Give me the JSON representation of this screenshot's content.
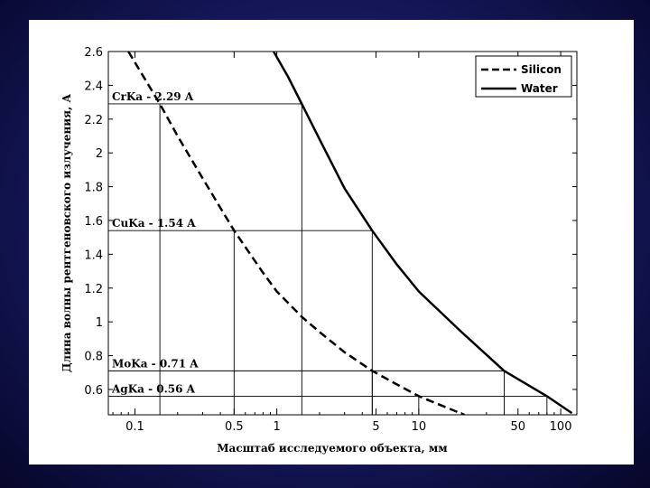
{
  "chart_data": {
    "type": "line",
    "xscale": "log",
    "xlabel": "Масштаб исследуемого объекта, мм",
    "ylabel": "Длина волны рентгеновского излучения, А",
    "xlim": [
      0.065,
      130
    ],
    "ylim": [
      0.45,
      2.6
    ],
    "x_ticks": [
      {
        "value": 0.1,
        "label": "0.1"
      },
      {
        "value": 0.5,
        "label": "0.5"
      },
      {
        "value": 1,
        "label": "1"
      },
      {
        "value": 5,
        "label": "5"
      },
      {
        "value": 10,
        "label": "10"
      },
      {
        "value": 50,
        "label": "50"
      },
      {
        "value": 100,
        "label": "100"
      }
    ],
    "y_ticks": [
      {
        "value": 0.6,
        "label": "0.6"
      },
      {
        "value": 0.8,
        "label": "0.8"
      },
      {
        "value": 1,
        "label": "1"
      },
      {
        "value": 1.2,
        "label": "1.2"
      },
      {
        "value": 1.4,
        "label": "1.4"
      },
      {
        "value": 1.6,
        "label": "1.6"
      },
      {
        "value": 1.8,
        "label": "1.8"
      },
      {
        "value": 2,
        "label": "2"
      },
      {
        "value": 2.2,
        "label": "2.2"
      },
      {
        "value": 2.4,
        "label": "2.4"
      },
      {
        "value": 2.6,
        "label": "2.6"
      }
    ],
    "series": [
      {
        "name": "Silicon",
        "style": "dashed",
        "color": "#000000",
        "x": [
          0.09,
          0.15,
          0.2,
          0.3,
          0.5,
          0.8,
          1.0,
          1.5,
          2.0,
          3.0,
          4.7,
          7.0,
          10.0,
          15.0,
          21.0
        ],
        "y": [
          2.6,
          2.29,
          2.1,
          1.85,
          1.54,
          1.29,
          1.18,
          1.03,
          0.94,
          0.82,
          0.71,
          0.63,
          0.56,
          0.5,
          0.45
        ]
      },
      {
        "name": "Water",
        "style": "solid",
        "color": "#000000",
        "x": [
          0.95,
          1.2,
          1.5,
          2.0,
          3.0,
          4.7,
          7.0,
          10.0,
          20.0,
          40.0,
          80.0,
          120.0
        ],
        "y": [
          2.6,
          2.45,
          2.29,
          2.08,
          1.79,
          1.54,
          1.34,
          1.18,
          0.94,
          0.71,
          0.56,
          0.46
        ]
      }
    ],
    "reference_lines": [
      {
        "label": "CrKa - 2.29 A",
        "y": 2.29,
        "x": [
          0.15,
          1.5
        ]
      },
      {
        "label": "CuKa - 1.54 A",
        "y": 1.54,
        "x": [
          0.5,
          4.7
        ]
      },
      {
        "label": "MoKa - 0.71 A",
        "y": 0.71,
        "x": [
          4.7,
          40
        ]
      },
      {
        "label": "AgKa - 0.56 A",
        "y": 0.56,
        "x": [
          10,
          80
        ]
      }
    ],
    "legend": {
      "position": "top-right",
      "entries": [
        "Silicon",
        "Water"
      ]
    },
    "grid": false
  }
}
